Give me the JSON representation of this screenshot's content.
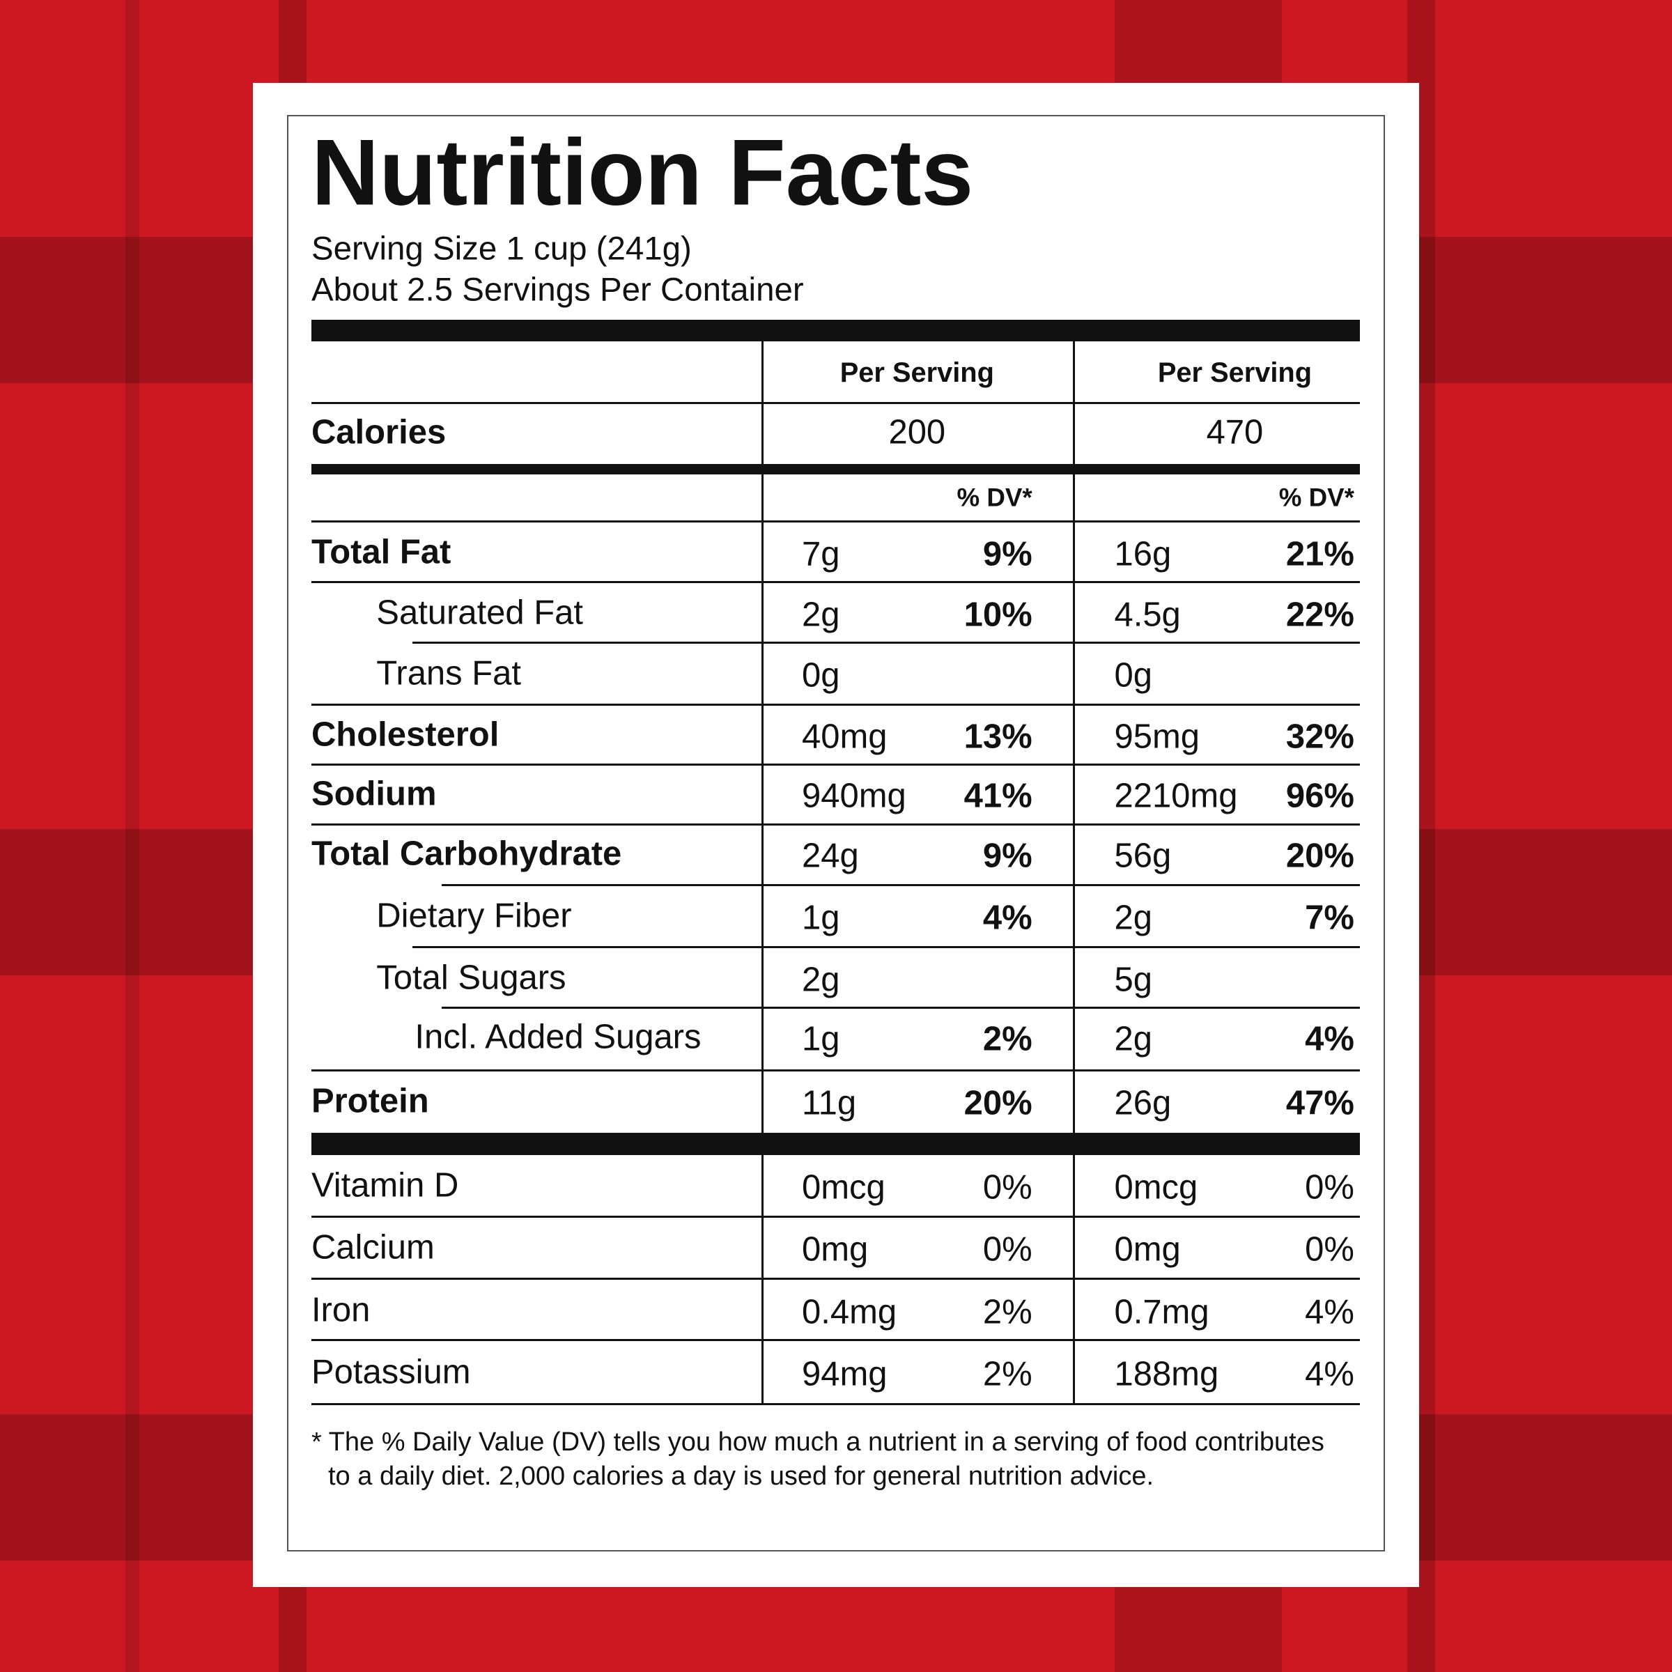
{
  "title": "Nutrition Facts",
  "serving_size": "Serving Size 1 cup (241g)",
  "servings_per_container": "About 2.5 Servings Per Container",
  "columns": [
    "Per Serving",
    "Per Serving"
  ],
  "calories": {
    "label": "Calories",
    "values": [
      200,
      470
    ]
  },
  "dv_header": [
    "% DV*",
    "% DV*"
  ],
  "nutrients": [
    {
      "name": "Total Fat",
      "amounts": [
        "7g",
        "16g"
      ],
      "dv": [
        "9%",
        "21%"
      ]
    },
    {
      "name": "Saturated Fat",
      "amounts": [
        "2g",
        "4.5g"
      ],
      "dv": [
        "10%",
        "22%"
      ]
    },
    {
      "name": "Trans Fat",
      "amounts": [
        "0g",
        "0g"
      ]
    },
    {
      "name": "Cholesterol",
      "amounts": [
        "40mg",
        "95mg"
      ],
      "dv": [
        "13%",
        "32%"
      ]
    },
    {
      "name": "Sodium",
      "amounts": [
        "940mg",
        "2210mg"
      ],
      "dv": [
        "41%",
        "96%"
      ]
    },
    {
      "name": "Total Carbohydrate",
      "amounts": [
        "24g",
        "56g"
      ],
      "dv": [
        "9%",
        "20%"
      ]
    },
    {
      "name": "Dietary Fiber",
      "amounts": [
        "1g",
        "2g"
      ],
      "dv": [
        "4%",
        "7%"
      ]
    },
    {
      "name": "Total Sugars",
      "amounts": [
        "2g",
        "5g"
      ]
    },
    {
      "name": "Incl. Added Sugars",
      "amounts": [
        "1g",
        "2g"
      ],
      "dv": [
        "2%",
        "4%"
      ]
    },
    {
      "name": "Protein",
      "amounts": [
        "11g",
        "26g"
      ],
      "dv": [
        "20%",
        "47%"
      ]
    }
  ],
  "vitamins": [
    {
      "name": "Vitamin D",
      "amounts": [
        "0mcg",
        "0mcg"
      ],
      "dv": [
        "0%",
        "0%"
      ]
    },
    {
      "name": "Calcium",
      "amounts": [
        "0mg",
        "0mg"
      ],
      "dv": [
        "0%",
        "0%"
      ]
    },
    {
      "name": "Iron",
      "amounts": [
        "0.4mg",
        "0.7mg"
      ],
      "dv": [
        "2%",
        "4%"
      ]
    },
    {
      "name": "Potassium",
      "amounts": [
        "94mg",
        "188mg"
      ],
      "dv": [
        "2%",
        "4%"
      ]
    }
  ],
  "footnote": "* The % Daily Value (DV) tells you how much a nutrient in a serving of food contributes to a daily diet. 2,000 calories a day is used for general nutrition advice."
}
